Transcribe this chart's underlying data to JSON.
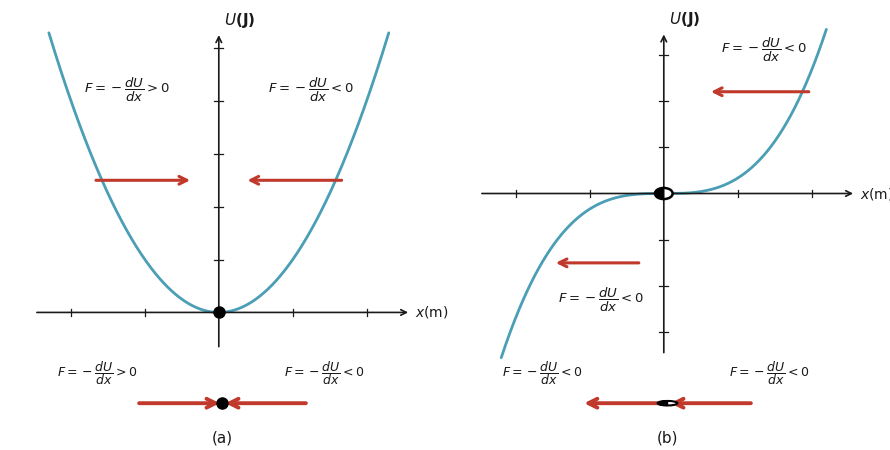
{
  "fig_width": 8.9,
  "fig_height": 4.5,
  "dpi": 100,
  "curve_color": "#4a9eb5",
  "curve_lw": 2.0,
  "arrow_color": "#c0392b",
  "text_color": "#1a1a1a",
  "axis_color": "#1a1a1a",
  "formula_gt": "$F = -\\dfrac{dU}{dx}>0$",
  "formula_lt": "$F = -\\dfrac{dU}{dx}<0$",
  "label_a": "(a)",
  "label_b": "(b)",
  "ylabel": "$U$(J)",
  "xlabel": "$x$(m)"
}
